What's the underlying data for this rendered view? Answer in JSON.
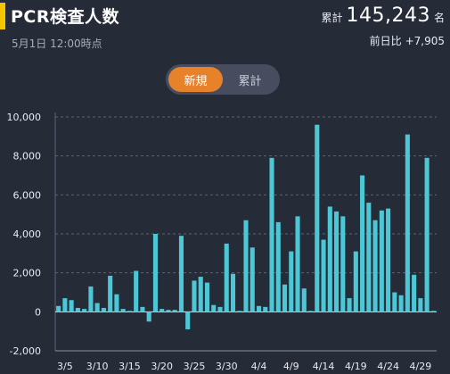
{
  "header": {
    "title": "PCR検査人数",
    "date": "5月1日 12:00時点",
    "total_label": "累計",
    "total_value": "145,243",
    "total_unit": "名",
    "diff_label": "前日比",
    "diff_value": "+7,905"
  },
  "toggle": {
    "options": [
      "新規",
      "累計"
    ],
    "selected": "新規"
  },
  "colors": {
    "background": "#262b38",
    "bar": "#4bc7d6",
    "accent": "#e8822a",
    "title_marker": "#f5c400"
  },
  "chart_data": {
    "type": "bar",
    "title": "",
    "xlabel": "",
    "ylabel": "",
    "ylim": [
      -2000,
      10000
    ],
    "yticks": [
      "10,000",
      "8,000",
      "6,000",
      "4,000",
      "2,000",
      "0",
      "-2,000"
    ],
    "grid": true,
    "x_tick_labels": [
      "3/5",
      "3/10",
      "3/15",
      "3/20",
      "3/25",
      "3/30",
      "4/4",
      "4/9",
      "4/14",
      "4/19",
      "4/24",
      "4/29"
    ],
    "categories": [
      "3/4",
      "3/5",
      "3/6",
      "3/7",
      "3/8",
      "3/9",
      "3/10",
      "3/11",
      "3/12",
      "3/13",
      "3/14",
      "3/15",
      "3/16",
      "3/17",
      "3/18",
      "3/19",
      "3/20",
      "3/21",
      "3/22",
      "3/23",
      "3/24",
      "3/25",
      "3/26",
      "3/27",
      "3/28",
      "3/29",
      "3/30",
      "3/31",
      "4/1",
      "4/2",
      "4/3",
      "4/4",
      "4/5",
      "4/6",
      "4/7",
      "4/8",
      "4/9",
      "4/10",
      "4/11",
      "4/12",
      "4/13",
      "4/14",
      "4/15",
      "4/16",
      "4/17",
      "4/18",
      "4/19",
      "4/20",
      "4/21",
      "4/22",
      "4/23",
      "4/24",
      "4/25",
      "4/26",
      "4/27",
      "4/28",
      "4/29",
      "4/30",
      "5/1"
    ],
    "values": [
      300,
      700,
      600,
      200,
      150,
      1300,
      450,
      200,
      1850,
      900,
      150,
      50,
      2100,
      250,
      -500,
      4000,
      150,
      100,
      100,
      3900,
      -900,
      1600,
      1800,
      1500,
      350,
      250,
      3500,
      1950,
      50,
      4700,
      3300,
      300,
      250,
      7900,
      4600,
      1400,
      3100,
      4900,
      1200,
      50,
      9600,
      3700,
      5400,
      5150,
      4900,
      700,
      3100,
      7000,
      5600,
      4700,
      5200,
      5300,
      1000,
      850,
      9100,
      1900,
      700,
      7900,
      50
    ]
  }
}
